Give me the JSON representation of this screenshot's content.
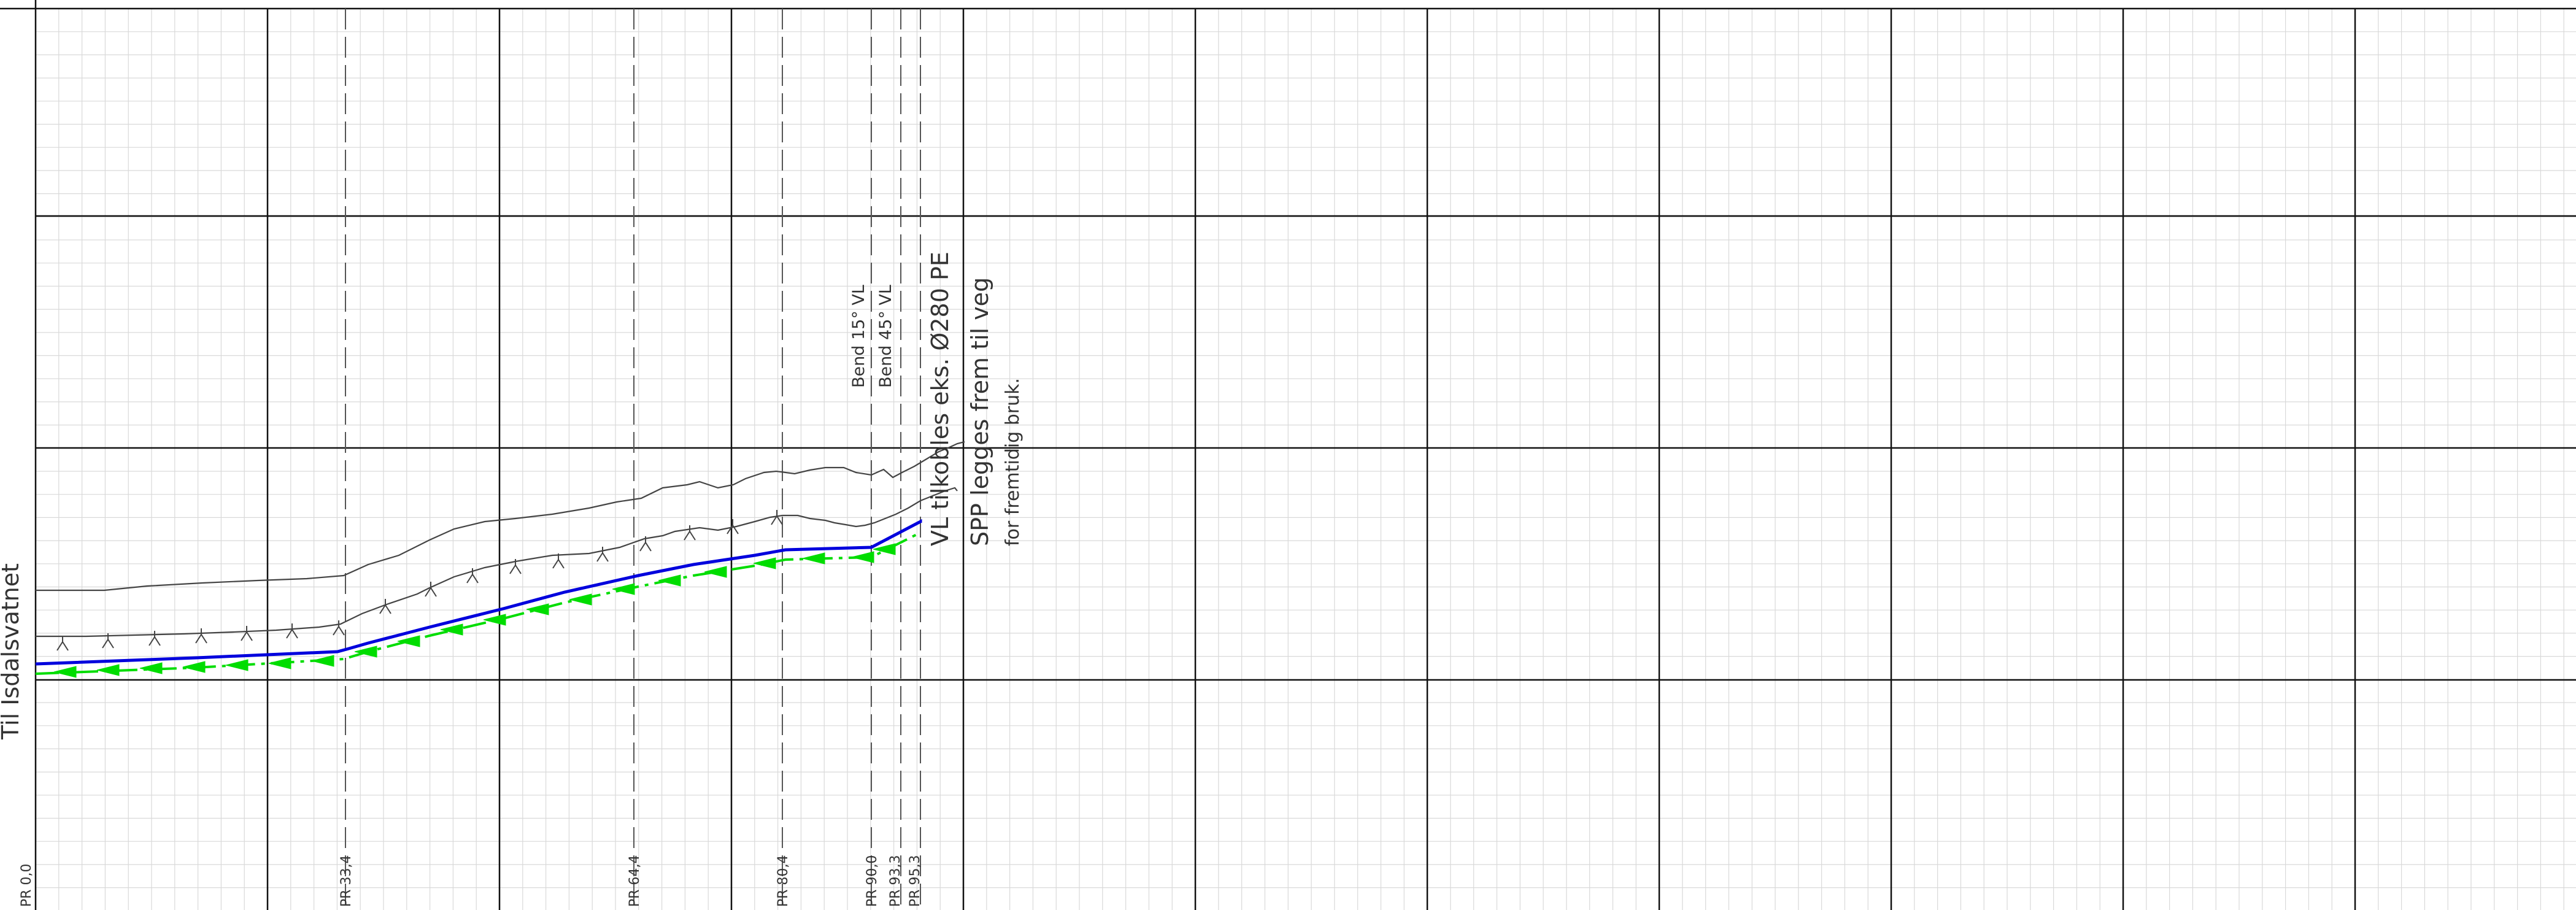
{
  "title": "Til Isdalsvatnet",
  "colors": {
    "background": "#ffffff",
    "grid_minor": "#d9d9d9",
    "grid_major": "#111111",
    "terrain": "#444444",
    "pipe": "#0000dd",
    "spp_line": "#00dd00",
    "dashed": "#555555"
  },
  "profile_stations": [
    {
      "label": "PR 0,0",
      "chainage": 0.0
    },
    {
      "label": "PR 33,4",
      "chainage": 33.4
    },
    {
      "label": "PR 64,4",
      "chainage": 64.4
    },
    {
      "label": "PR 80,4",
      "chainage": 80.4
    },
    {
      "label": "PR 90,0",
      "chainage": 90.0
    },
    {
      "label": "PR 93,3",
      "chainage": 93.3
    },
    {
      "label": "PR 95,3",
      "chainage": 95.3
    }
  ],
  "annotations": {
    "bend_15": "Bend 15° VL",
    "bend_45": "Bend 45° VL",
    "vl_connection": "VL tilkobles eks. Ø280 PE",
    "spp_line1": "SPP legges frem til veg",
    "spp_line2": "for fremtidig bruk."
  }
}
